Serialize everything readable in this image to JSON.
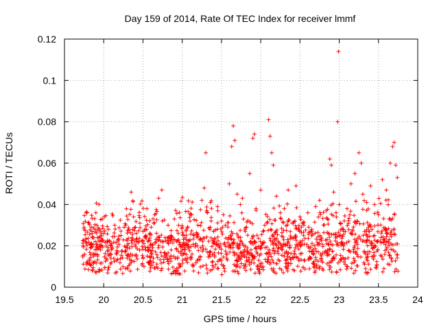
{
  "chart_data": {
    "type": "scatter",
    "title": "Day 159 of 2014, Rate Of TEC Index for receiver lmmf",
    "xlabel": "GPS time / hours",
    "ylabel": "ROTI / TECUs",
    "xlim": [
      19.5,
      24
    ],
    "ylim": [
      0,
      0.12
    ],
    "xticks": [
      19.5,
      20,
      20.5,
      21,
      21.5,
      22,
      22.5,
      23,
      23.5,
      24
    ],
    "yticks": [
      0,
      0.02,
      0.04,
      0.06,
      0.08,
      0.1,
      0.12
    ],
    "xtick_labels": [
      "19.5",
      "20",
      "20.5",
      "21",
      "21.5",
      "22",
      "22.5",
      "23",
      "23.5",
      "24"
    ],
    "ytick_labels": [
      "0",
      "0.02",
      "0.04",
      "0.06",
      "0.08",
      "0.1",
      "0.12"
    ],
    "grid": true,
    "marker": "+",
    "series_color": "#ff0000",
    "series": [
      {
        "name": "ROTI",
        "x": [
          19.75,
          19.77,
          19.79,
          19.81,
          19.83,
          19.85,
          19.87,
          19.9,
          19.92,
          19.94,
          19.96,
          19.98,
          20.0,
          20.03,
          20.06,
          20.1,
          20.14,
          20.18,
          20.22,
          20.26,
          20.3,
          20.35,
          20.38,
          20.42,
          20.46,
          20.5,
          20.55,
          20.6,
          20.65,
          20.7,
          20.74,
          20.78,
          20.82,
          20.86,
          20.9,
          20.95,
          21.0,
          21.05,
          21.1,
          21.15,
          21.2,
          21.25,
          21.28,
          21.3,
          21.32,
          21.36,
          21.4,
          21.45,
          21.5,
          21.55,
          21.6,
          21.63,
          21.65,
          21.67,
          21.7,
          21.74,
          21.78,
          21.82,
          21.86,
          21.9,
          21.92,
          21.94,
          22.0,
          22.05,
          22.1,
          22.12,
          22.14,
          22.16,
          22.2,
          22.25,
          22.3,
          22.35,
          22.4,
          22.45,
          22.5,
          22.55,
          22.6,
          22.65,
          22.7,
          22.75,
          22.8,
          22.85,
          22.88,
          22.9,
          22.93,
          22.96,
          22.98,
          22.99,
          23.0,
          23.02,
          23.05,
          23.1,
          23.15,
          23.2,
          23.25,
          23.28,
          23.3,
          23.35,
          23.4,
          23.45,
          23.5,
          23.55,
          23.6,
          23.65,
          23.68,
          23.7,
          23.72,
          23.74
        ],
        "values": [
          0.029,
          0.022,
          0.012,
          0.031,
          0.019,
          0.027,
          0.015,
          0.036,
          0.024,
          0.04,
          0.018,
          0.033,
          0.026,
          0.014,
          0.028,
          0.021,
          0.03,
          0.017,
          0.025,
          0.029,
          0.019,
          0.046,
          0.034,
          0.022,
          0.031,
          0.027,
          0.038,
          0.02,
          0.035,
          0.043,
          0.047,
          0.024,
          0.03,
          0.018,
          0.033,
          0.026,
          0.029,
          0.021,
          0.032,
          0.025,
          0.03,
          0.042,
          0.048,
          0.065,
          0.036,
          0.041,
          0.027,
          0.039,
          0.032,
          0.03,
          0.05,
          0.068,
          0.078,
          0.071,
          0.045,
          0.04,
          0.033,
          0.029,
          0.055,
          0.072,
          0.074,
          0.038,
          0.047,
          0.03,
          0.081,
          0.073,
          0.065,
          0.059,
          0.044,
          0.036,
          0.038,
          0.047,
          0.031,
          0.049,
          0.034,
          0.03,
          0.036,
          0.028,
          0.039,
          0.042,
          0.03,
          0.033,
          0.062,
          0.059,
          0.046,
          0.036,
          0.08,
          0.114,
          0.04,
          0.031,
          0.028,
          0.038,
          0.05,
          0.055,
          0.065,
          0.06,
          0.045,
          0.041,
          0.049,
          0.04,
          0.035,
          0.052,
          0.047,
          0.06,
          0.068,
          0.07,
          0.059,
          0.053
        ]
      }
    ]
  }
}
